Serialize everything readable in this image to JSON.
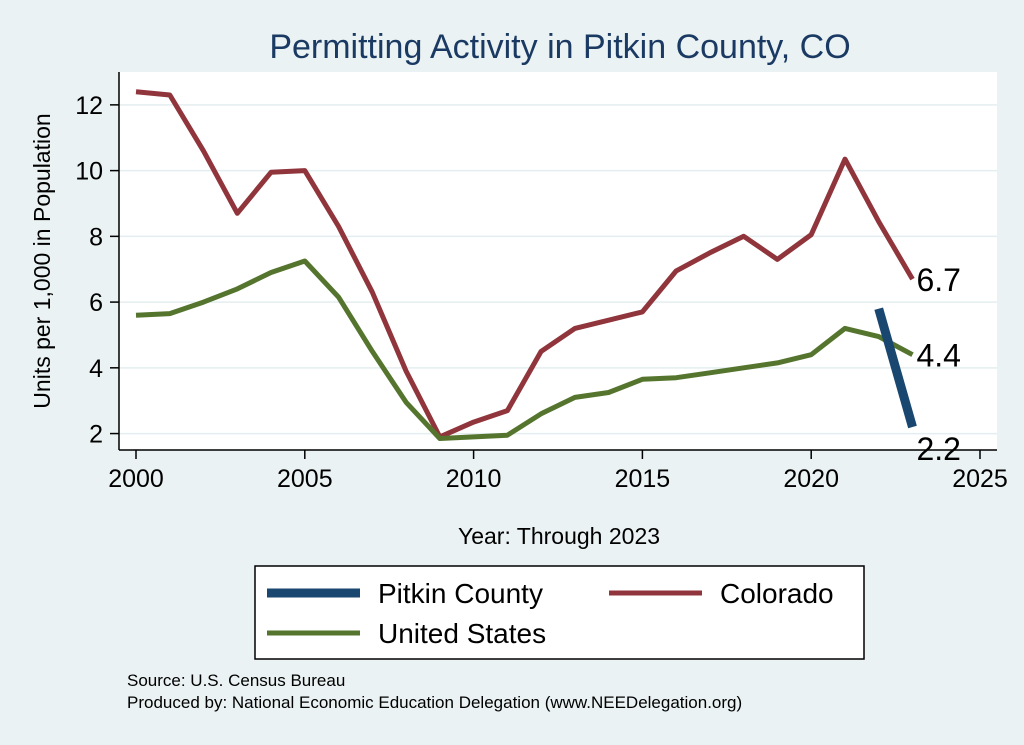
{
  "chart_data": {
    "type": "line",
    "title": "Permitting Activity in Pitkin County, CO",
    "xlabel": "Year: Through 2023",
    "ylabel": "Units per 1,000 in Population",
    "xlim": [
      2000,
      2025
    ],
    "ylim": [
      1.5,
      13
    ],
    "xticks": [
      2000,
      2005,
      2010,
      2015,
      2020,
      2025
    ],
    "yticks": [
      2,
      4,
      6,
      8,
      10,
      12
    ],
    "x_tick_labels": [
      "2000",
      "2005",
      "2010",
      "2015",
      "2020",
      "2025"
    ],
    "y_tick_labels": [
      "2",
      "4",
      "6",
      "8",
      "10",
      "12"
    ],
    "grid": true,
    "series": [
      {
        "name": "Pitkin County",
        "color": "#1a476f",
        "x": [
          2022,
          2023
        ],
        "values": [
          5.8,
          2.2
        ],
        "end_label": "2.2"
      },
      {
        "name": "Colorado",
        "color": "#90353b",
        "x": [
          2000,
          2001,
          2002,
          2003,
          2004,
          2005,
          2006,
          2007,
          2008,
          2009,
          2010,
          2011,
          2012,
          2013,
          2014,
          2015,
          2016,
          2017,
          2018,
          2019,
          2020,
          2021,
          2022,
          2023
        ],
        "values": [
          12.4,
          12.3,
          10.6,
          8.7,
          9.95,
          10.0,
          8.3,
          6.3,
          3.9,
          1.9,
          2.35,
          2.7,
          4.5,
          5.2,
          5.45,
          5.7,
          6.95,
          7.5,
          8.0,
          7.3,
          8.05,
          10.35,
          8.45,
          6.7
        ],
        "end_label": "6.7"
      },
      {
        "name": "United States",
        "color": "#55752f",
        "x": [
          2000,
          2001,
          2002,
          2003,
          2004,
          2005,
          2006,
          2007,
          2008,
          2009,
          2010,
          2011,
          2012,
          2013,
          2014,
          2015,
          2016,
          2017,
          2018,
          2019,
          2020,
          2021,
          2022,
          2023
        ],
        "values": [
          5.6,
          5.65,
          6.0,
          6.4,
          6.9,
          7.25,
          6.15,
          4.5,
          2.95,
          1.85,
          1.9,
          1.95,
          2.6,
          3.1,
          3.25,
          3.65,
          3.7,
          3.85,
          4.0,
          4.15,
          4.4,
          5.2,
          4.95,
          4.4
        ],
        "end_label": "4.4"
      }
    ],
    "legend": {
      "placement": "bottom",
      "entries": [
        "Pitkin County",
        "Colorado",
        "United States"
      ]
    }
  },
  "notes": {
    "source": "Source: U.S. Census Bureau",
    "produced_by": "Produced by: National Economic Education Delegation (www.NEEDelegation.org)"
  }
}
